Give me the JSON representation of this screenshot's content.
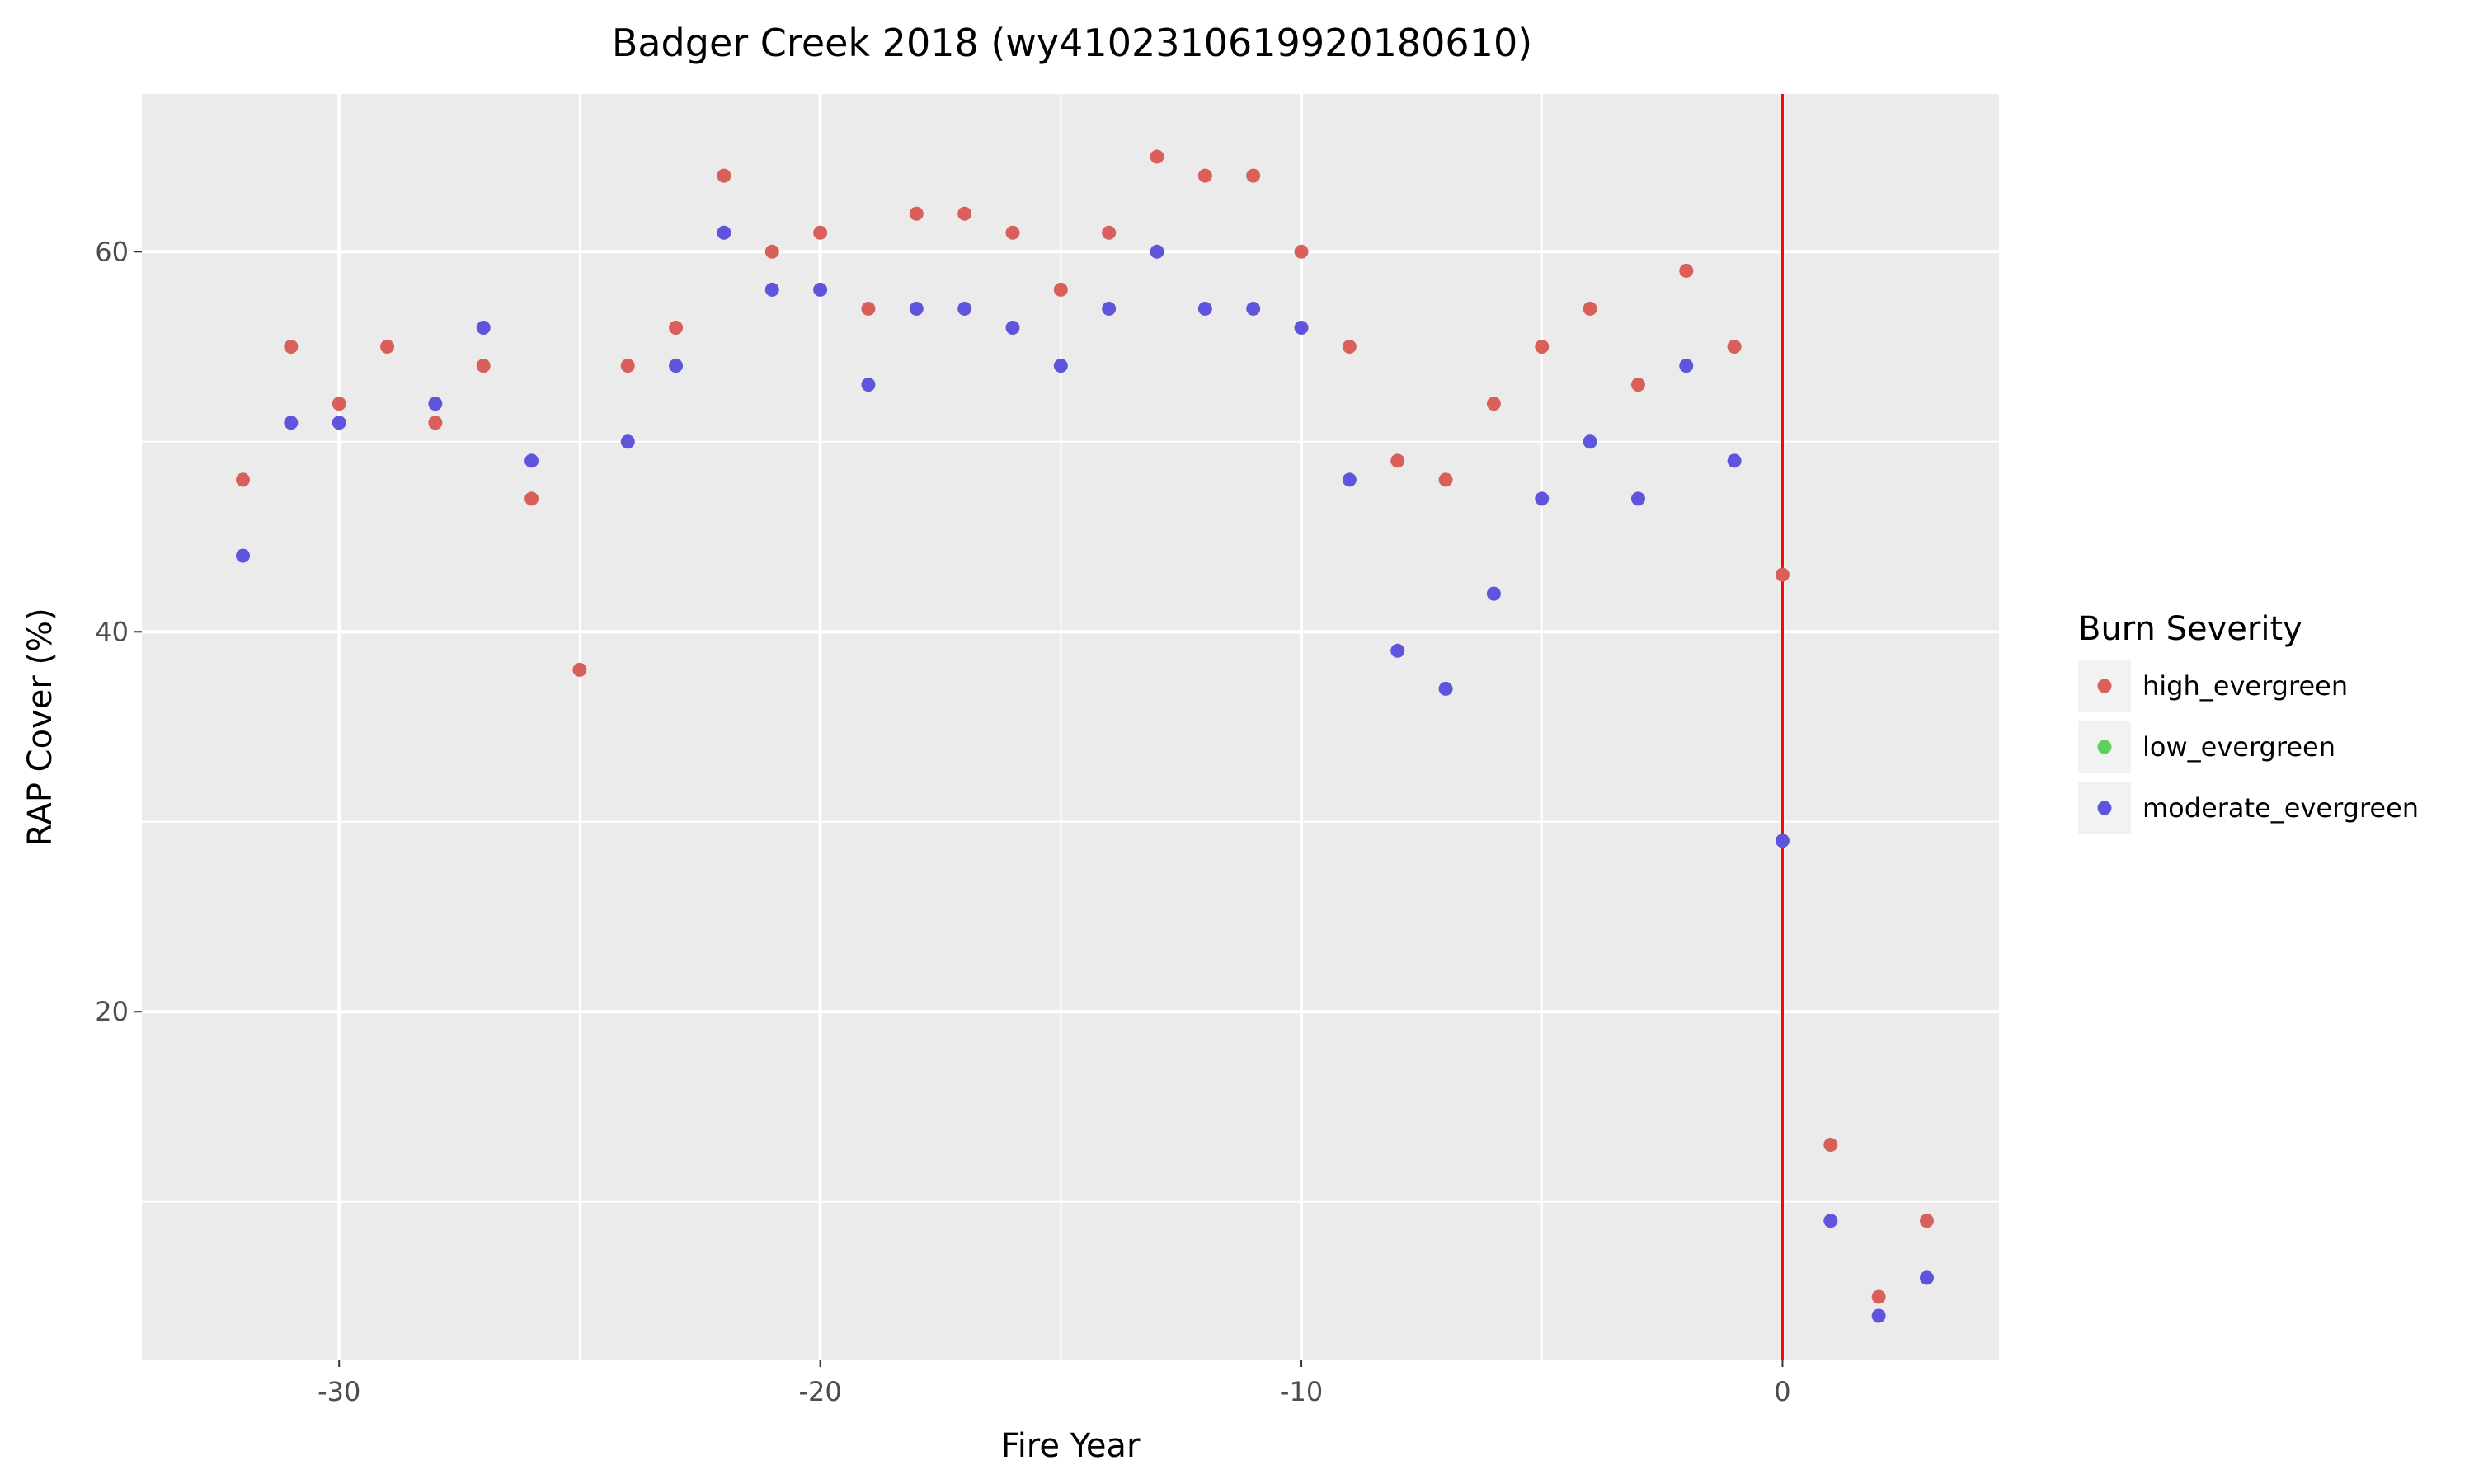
{
  "chart_data": {
    "type": "scatter",
    "title": "Badger Creek 2018 (wy4102310619920180610)",
    "xlabel": "Fire Year",
    "ylabel": "RAP Cover (%)",
    "xlim": [
      -34.1,
      4.5
    ],
    "ylim": [
      1.7,
      68.3
    ],
    "x_ticks": [
      -30,
      -20,
      -10,
      0
    ],
    "y_ticks": [
      20,
      40,
      60
    ],
    "grid": true,
    "background": "#ebebeb",
    "vline": {
      "x": 0,
      "color": "#ff0000"
    },
    "legend": {
      "title": "Burn Severity",
      "position": "right"
    },
    "series": [
      {
        "name": "high_evergreen",
        "color": "#d95f5a",
        "points": [
          [
            -32,
            48
          ],
          [
            -31,
            55
          ],
          [
            -30,
            52
          ],
          [
            -29,
            55
          ],
          [
            -28,
            51
          ],
          [
            -27,
            54
          ],
          [
            -26,
            47
          ],
          [
            -25,
            38
          ],
          [
            -24,
            54
          ],
          [
            -23,
            56
          ],
          [
            -22,
            64
          ],
          [
            -21,
            60
          ],
          [
            -20,
            61
          ],
          [
            -19,
            57
          ],
          [
            -18,
            62
          ],
          [
            -17,
            62
          ],
          [
            -16,
            61
          ],
          [
            -15,
            58
          ],
          [
            -14,
            61
          ],
          [
            -13,
            65
          ],
          [
            -12,
            64
          ],
          [
            -11,
            64
          ],
          [
            -10,
            60
          ],
          [
            -9,
            55
          ],
          [
            -8,
            49
          ],
          [
            -7,
            48
          ],
          [
            -6,
            52
          ],
          [
            -5,
            55
          ],
          [
            -4,
            57
          ],
          [
            -3,
            53
          ],
          [
            -2,
            59
          ],
          [
            -1,
            55
          ],
          [
            0,
            43
          ],
          [
            1,
            13
          ],
          [
            2,
            5
          ],
          [
            3,
            9
          ]
        ]
      },
      {
        "name": "low_evergreen",
        "color": "#5fcf5f",
        "points": []
      },
      {
        "name": "moderate_evergreen",
        "color": "#5f55dc",
        "points": [
          [
            -32,
            44
          ],
          [
            -31,
            51
          ],
          [
            -30,
            51
          ],
          [
            -28,
            52
          ],
          [
            -27,
            56
          ],
          [
            -26,
            49
          ],
          [
            -24,
            50
          ],
          [
            -23,
            54
          ],
          [
            -22,
            61
          ],
          [
            -21,
            58
          ],
          [
            -20,
            58
          ],
          [
            -19,
            53
          ],
          [
            -18,
            57
          ],
          [
            -17,
            57
          ],
          [
            -16,
            56
          ],
          [
            -15,
            54
          ],
          [
            -14,
            57
          ],
          [
            -13,
            60
          ],
          [
            -12,
            57
          ],
          [
            -11,
            57
          ],
          [
            -10,
            56
          ],
          [
            -9,
            48
          ],
          [
            -8,
            39
          ],
          [
            -7,
            37
          ],
          [
            -6,
            42
          ],
          [
            -5,
            47
          ],
          [
            -4,
            50
          ],
          [
            -3,
            47
          ],
          [
            -2,
            54
          ],
          [
            -1,
            49
          ],
          [
            0,
            29
          ],
          [
            1,
            9
          ],
          [
            2,
            4
          ],
          [
            3,
            6
          ]
        ]
      }
    ]
  }
}
